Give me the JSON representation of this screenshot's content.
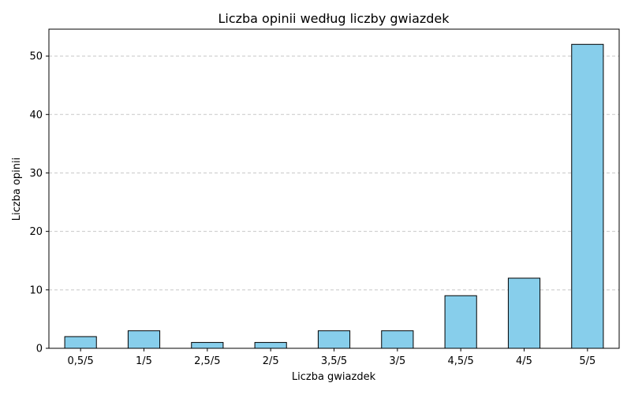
{
  "chart_data": {
    "type": "bar",
    "title": "Liczba opinii według liczby gwiazdek",
    "xlabel": "Liczba gwiazdek",
    "ylabel": "Liczba opinii",
    "categories": [
      "0,5/5",
      "1/5",
      "2,5/5",
      "2/5",
      "3,5/5",
      "3/5",
      "4,5/5",
      "4/5",
      "5/5"
    ],
    "values": [
      2,
      3,
      1,
      1,
      3,
      3,
      9,
      12,
      52
    ],
    "ylim": [
      0,
      54.6
    ],
    "yticks": [
      0,
      10,
      20,
      30,
      40,
      50
    ],
    "grid": "y-dashed",
    "legend": "none",
    "colors": {
      "bar_fill": "#87ceeb",
      "bar_edge": "#000000",
      "grid": "#c8c8c8",
      "axis": "#000000"
    }
  }
}
